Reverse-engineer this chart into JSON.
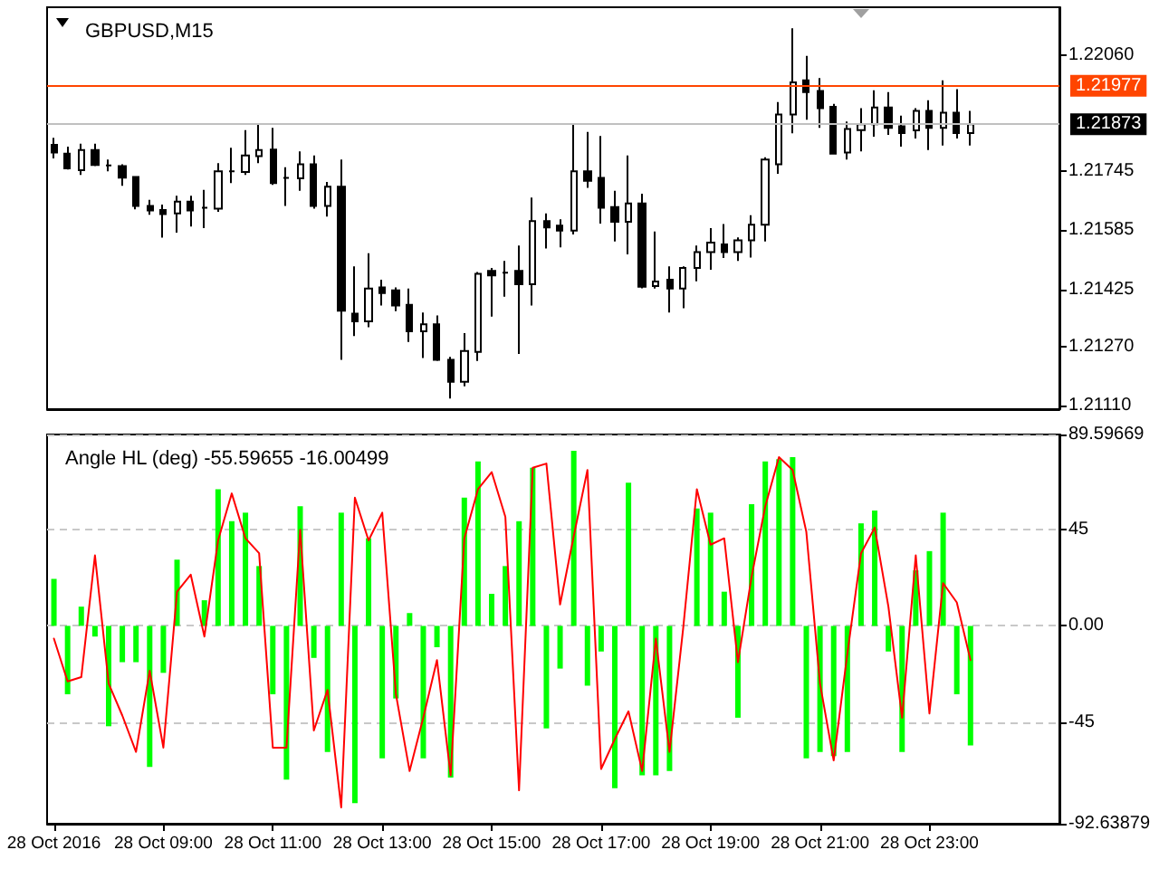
{
  "chart_data": [
    {
      "type": "candlestick",
      "title": "GBPUSD,M15",
      "categories": [
        null,
        null,
        null,
        null,
        null,
        null,
        null,
        null,
        null,
        null,
        null,
        null,
        null,
        null,
        null,
        null,
        null,
        null,
        null,
        null,
        null,
        null,
        null,
        null,
        null,
        null,
        null,
        null,
        null,
        null,
        null,
        null,
        null,
        null,
        null,
        null,
        null,
        null,
        null,
        null,
        null,
        null,
        null,
        null,
        null,
        null,
        null,
        null,
        null,
        null,
        null,
        null,
        null,
        null,
        null,
        null,
        null,
        null,
        null,
        null,
        null,
        null,
        null,
        null,
        null,
        null,
        null,
        null,
        null,
        null,
        null,
        null,
        null,
        null
      ],
      "ohlc": [
        [
          1.21817,
          1.21836,
          1.2178,
          1.21796
        ],
        [
          1.21793,
          1.21812,
          1.2175,
          1.21753
        ],
        [
          1.21748,
          1.2182,
          1.21735,
          1.21803
        ],
        [
          1.21803,
          1.2182,
          1.21759,
          1.21762
        ],
        [
          1.21761,
          1.21777,
          1.21745,
          1.21761
        ],
        [
          1.21759,
          1.21764,
          1.21706,
          1.21728
        ],
        [
          1.2173,
          1.21732,
          1.21642,
          1.21651
        ],
        [
          1.21651,
          1.21668,
          1.21627,
          1.21639
        ],
        [
          1.2164,
          1.21655,
          1.21565,
          1.21629
        ],
        [
          1.21631,
          1.21679,
          1.21579,
          1.21663
        ],
        [
          1.21663,
          1.21679,
          1.21595,
          1.21639
        ],
        [
          1.21646,
          1.21695,
          1.21591,
          1.21646
        ],
        [
          1.21644,
          1.21767,
          1.21635,
          1.21745
        ],
        [
          1.21745,
          1.21809,
          1.21713,
          1.21745
        ],
        [
          1.21743,
          1.21857,
          1.21735,
          1.21788
        ],
        [
          1.21786,
          1.21876,
          1.21767,
          1.21803
        ],
        [
          1.21804,
          1.21863,
          1.21708,
          1.21713
        ],
        [
          1.21727,
          1.21756,
          1.21651,
          1.21727
        ],
        [
          1.21726,
          1.21799,
          1.21692,
          1.21764
        ],
        [
          1.21764,
          1.21788,
          1.21644,
          1.21651
        ],
        [
          1.21651,
          1.21716,
          1.21622,
          1.21703
        ],
        [
          1.21703,
          1.21777,
          1.21234,
          1.21367
        ],
        [
          1.21359,
          1.21487,
          1.21298,
          1.21338
        ],
        [
          1.21338,
          1.21523,
          1.21322,
          1.21427
        ],
        [
          1.2143,
          1.21451,
          1.21381,
          1.21415
        ],
        [
          1.21422,
          1.2143,
          1.21366,
          1.21381
        ],
        [
          1.21383,
          1.21427,
          1.21282,
          1.21311
        ],
        [
          1.21311,
          1.21362,
          1.21239,
          1.2133
        ],
        [
          1.2133,
          1.21354,
          1.21231,
          1.21234
        ],
        [
          1.21234,
          1.21242,
          1.21129,
          1.21174
        ],
        [
          1.21174,
          1.21306,
          1.21162,
          1.21258
        ],
        [
          1.21255,
          1.21472,
          1.21231,
          1.21467
        ],
        [
          1.21475,
          1.21483,
          1.21351,
          1.21463
        ],
        [
          1.2147,
          1.21502,
          1.21405,
          1.2147
        ],
        [
          1.21475,
          1.21544,
          1.2125,
          1.21439
        ],
        [
          1.21439,
          1.21674,
          1.21381,
          1.2161
        ],
        [
          1.2161,
          1.21631,
          1.21536,
          1.21593
        ],
        [
          1.21598,
          1.21615,
          1.21539,
          1.21584
        ],
        [
          1.21584,
          1.21872,
          1.21574,
          1.21745
        ],
        [
          1.21745,
          1.21852,
          1.217,
          1.21719
        ],
        [
          1.21727,
          1.21841,
          1.21603,
          1.21646
        ],
        [
          1.21648,
          1.21692,
          1.21555,
          1.21608
        ],
        [
          1.21608,
          1.21788,
          1.2152,
          1.21658
        ],
        [
          1.21658,
          1.21684,
          1.21428,
          1.21432
        ],
        [
          1.21434,
          1.21582,
          1.21427,
          1.21446
        ],
        [
          1.21451,
          1.21487,
          1.21362,
          1.21427
        ],
        [
          1.21427,
          1.21487,
          1.21374,
          1.21483
        ],
        [
          1.21483,
          1.21544,
          1.21447,
          1.21526
        ],
        [
          1.21526,
          1.21591,
          1.21478,
          1.21552
        ],
        [
          1.21547,
          1.21602,
          1.2151,
          1.21526
        ],
        [
          1.21526,
          1.21566,
          1.21502,
          1.21558
        ],
        [
          1.21558,
          1.21626,
          1.21511,
          1.216
        ],
        [
          1.216,
          1.21783,
          1.21555,
          1.21777
        ],
        [
          1.21764,
          1.21933,
          1.21738,
          1.21899
        ],
        [
          1.21899,
          1.22133,
          1.21848,
          1.21986
        ],
        [
          1.21992,
          1.22058,
          1.21885,
          1.2196
        ],
        [
          1.21963,
          1.21998,
          1.21863,
          1.21916
        ],
        [
          1.2192,
          1.21928,
          1.21791,
          1.21793
        ],
        [
          1.21796,
          1.2188,
          1.21777,
          1.2186
        ],
        [
          1.21857,
          1.21916,
          1.21799,
          1.21873
        ],
        [
          1.21873,
          1.21965,
          1.21839,
          1.21918
        ],
        [
          1.21918,
          1.2196,
          1.21844,
          1.21863
        ],
        [
          1.21867,
          1.21896,
          1.21812,
          1.21849
        ],
        [
          1.21856,
          1.21916,
          1.21834,
          1.21909
        ],
        [
          1.21909,
          1.21938,
          1.21803,
          1.21863
        ],
        [
          1.21863,
          1.21992,
          1.21815,
          1.21904
        ],
        [
          1.21904,
          1.21968,
          1.21834,
          1.21849
        ],
        [
          1.21849,
          1.21909,
          1.21815,
          1.21873
        ],
        null,
        null,
        null,
        null,
        null,
        null
      ],
      "color": "#000000",
      "ylim": [
        1.211,
        1.2219
      ],
      "yticks": [
        {
          "value": 1.2111,
          "label": "1.21110"
        },
        {
          "value": 1.2127,
          "label": "1.21270"
        },
        1.21425,
        1.21585,
        1.21745,
        {
          "value": 1.2206,
          "label": "1.22060"
        }
      ],
      "ref_lines": [
        {
          "axis": "y",
          "value": 1.21977,
          "label": "1.21977",
          "color": "#ff4500"
        },
        {
          "axis": "y",
          "value": 1.21873,
          "label": "1.21873",
          "color": "#c0c0c0"
        }
      ],
      "tick_labels": "y"
    },
    {
      "type": "bar",
      "title": "Angle HL (deg) -55.59655 -16.00499",
      "categories": [
        "28 Oct 2016",
        null,
        null,
        null,
        null,
        null,
        null,
        null,
        "28 Oct 09:00",
        null,
        null,
        null,
        null,
        null,
        null,
        null,
        "28 Oct 11:00",
        null,
        null,
        null,
        null,
        null,
        null,
        null,
        "28 Oct 13:00",
        null,
        null,
        null,
        null,
        null,
        null,
        null,
        "28 Oct 15:00",
        null,
        null,
        null,
        null,
        null,
        null,
        null,
        "28 Oct 17:00",
        null,
        null,
        null,
        null,
        null,
        null,
        null,
        "28 Oct 19:00",
        null,
        null,
        null,
        null,
        null,
        null,
        null,
        "28 Oct 21:00",
        null,
        null,
        null,
        null,
        null,
        null,
        null,
        "28 Oct 23:00",
        null,
        null,
        null,
        null,
        null,
        null,
        null,
        null,
        null
      ],
      "series": [
        {
          "color": "#00ff00",
          "values": [
            22,
            -32,
            9,
            -5,
            -47,
            -17,
            -17,
            -66,
            -22,
            31,
            0,
            12,
            64,
            49,
            53,
            28,
            -32,
            -72,
            56,
            -15,
            -59,
            53,
            -83,
            41,
            -62,
            -34,
            6,
            -62,
            -10,
            -71,
            60,
            77,
            15,
            28,
            49,
            74,
            -48,
            -20,
            82,
            -28,
            -12,
            -76,
            67,
            -70,
            -70,
            -68,
            0,
            55,
            53,
            16,
            -43,
            57,
            77,
            78,
            79,
            -62,
            -59,
            -61,
            -59,
            48,
            54,
            -12,
            -59,
            26,
            35,
            53,
            -32,
            -56,
            null,
            null,
            null,
            null,
            null,
            null
          ]
        },
        {
          "type": "line",
          "color": "#ff0000",
          "values": [
            -6,
            -26,
            -24,
            33,
            -27,
            -42,
            -59,
            -21,
            -57,
            16,
            24,
            -5,
            40,
            62,
            41,
            34,
            -57,
            -57,
            45,
            -49,
            -30,
            -85,
            60,
            40,
            53,
            -32,
            -68,
            -43,
            -16,
            -70,
            41,
            64,
            72,
            51,
            -77,
            74,
            76,
            10,
            42,
            73,
            -67,
            -53,
            -40,
            -68,
            -6,
            -59,
            -1,
            64,
            38,
            41,
            -17,
            23,
            56,
            79,
            73,
            44,
            -27,
            -63,
            -13,
            34,
            46,
            9,
            -43,
            33,
            -41,
            20,
            11,
            -16,
            null,
            null,
            null,
            null,
            null,
            null
          ]
        }
      ],
      "ylim": [
        -92.63879,
        89.59669
      ],
      "yticks": [
        -92.63879,
        -45,
        {
          "value": 0,
          "label": "0.00"
        },
        45,
        89.59669
      ],
      "grid": "y",
      "marker": "none"
    }
  ]
}
